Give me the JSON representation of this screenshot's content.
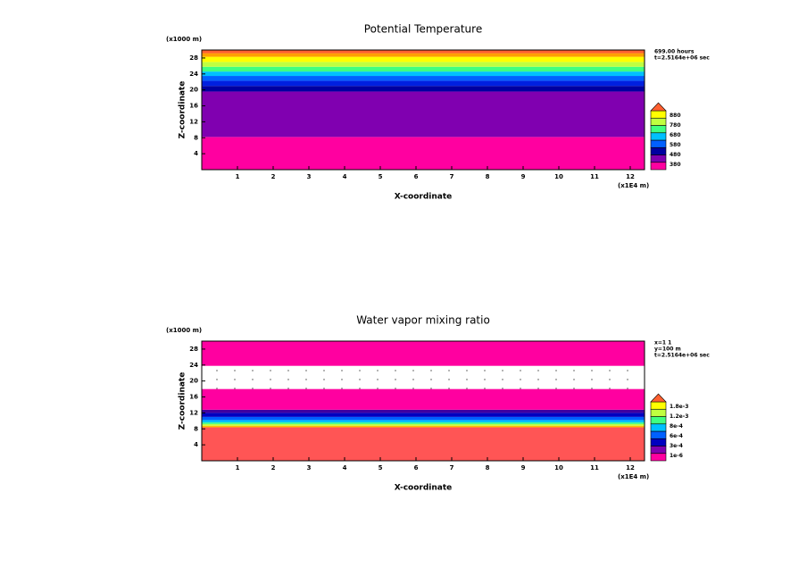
{
  "chart_data": [
    {
      "type": "contour",
      "title": "Potential Temperature",
      "xlabel": "X-coordinate",
      "ylabel": "Z-coordinate",
      "x_unit_label": "(x1E4 m)",
      "y_unit_label": "(x1000 m)",
      "info": [
        "699.00 hours",
        "t=2.5164e+06 sec"
      ],
      "xlim": [
        0,
        12.4
      ],
      "xticks": [
        1,
        2,
        3,
        4,
        5,
        6,
        7,
        8,
        9,
        10,
        11,
        12
      ],
      "ylim": [
        0,
        30
      ],
      "yticks": [
        4,
        8,
        12,
        16,
        20,
        24,
        28
      ],
      "bands": [
        {
          "from": 0,
          "to": 8.2,
          "color": "#ff00a0"
        },
        {
          "from": 8.2,
          "to": 19.6,
          "color": "#8000b0"
        },
        {
          "from": 19.6,
          "to": 21,
          "color": "#0000a0"
        },
        {
          "from": 21,
          "to": 22.3,
          "color": "#0020e0"
        },
        {
          "from": 22.3,
          "to": 23.5,
          "color": "#0060ff"
        },
        {
          "from": 23.5,
          "to": 24.6,
          "color": "#00c0ff"
        },
        {
          "from": 24.6,
          "to": 25.8,
          "color": "#40ff80"
        },
        {
          "from": 25.8,
          "to": 27,
          "color": "#c0ff40"
        },
        {
          "from": 27,
          "to": 28.3,
          "color": "#ffff00"
        },
        {
          "from": 28.3,
          "to": 29.2,
          "color": "#ffa000"
        },
        {
          "from": 29.2,
          "to": 30,
          "color": "#ff6030"
        }
      ],
      "colorbar_colors": [
        "#ff00a0",
        "#8000b0",
        "#0000a0",
        "#0060ff",
        "#00c0ff",
        "#40ff80",
        "#c0ff40",
        "#ffff00",
        "#ff6030"
      ],
      "colorbar_labels": [
        "380",
        "480",
        "580",
        "680",
        "780",
        "880"
      ]
    },
    {
      "type": "contour",
      "title": "Water vapor mixing ratio",
      "xlabel": "X-coordinate",
      "ylabel": "Z-coordinate",
      "x_unit_label": "(x1E4 m)",
      "y_unit_label": "(x1000 m)",
      "info": [
        "x=1 1",
        "y=100 m",
        "t=2.5164e+06 sec"
      ],
      "xlim": [
        0,
        12.4
      ],
      "xticks": [
        1,
        2,
        3,
        4,
        5,
        6,
        7,
        8,
        9,
        10,
        11,
        12
      ],
      "ylim": [
        0,
        30
      ],
      "yticks": [
        4,
        8,
        12,
        16,
        20,
        24,
        28
      ],
      "bands": [
        {
          "from": 0,
          "to": 8.4,
          "color": "#ff5555"
        },
        {
          "from": 8.4,
          "to": 8.8,
          "color": "#ffc000"
        },
        {
          "from": 8.8,
          "to": 9.2,
          "color": "#c0ff40"
        },
        {
          "from": 9.2,
          "to": 9.6,
          "color": "#40ff80"
        },
        {
          "from": 9.6,
          "to": 10.2,
          "color": "#00c0ff"
        },
        {
          "from": 10.2,
          "to": 11,
          "color": "#0060ff"
        },
        {
          "from": 11,
          "to": 12,
          "color": "#0000c0"
        },
        {
          "from": 12,
          "to": 12.8,
          "color": "#4000a0"
        },
        {
          "from": 12.8,
          "to": 18,
          "color": "#ff00a0"
        },
        {
          "from": 18,
          "to": 23.8,
          "color": "#ffffff"
        },
        {
          "from": 23.8,
          "to": 30,
          "color": "#ff00a0"
        }
      ],
      "colorbar_colors": [
        "#ff00a0",
        "#8000b0",
        "#0000c0",
        "#0060ff",
        "#00c0ff",
        "#40ff80",
        "#c0ff40",
        "#ffff00",
        "#ff6030"
      ],
      "colorbar_labels": [
        "1e-6",
        "3e-4",
        "6e-4",
        "8e-4",
        "1.2e-3",
        "1.8e-3"
      ]
    }
  ]
}
